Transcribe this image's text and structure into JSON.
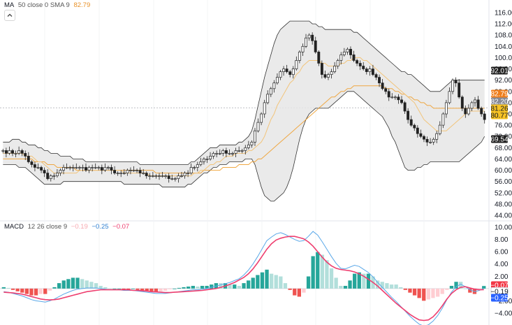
{
  "legend_ma": {
    "indicator": "MA",
    "params": "50 close 0 SMA 9",
    "value": "82.79"
  },
  "legend_macd": {
    "indicator": "MACD",
    "params": "12 26 close 9",
    "v1": "−0.19",
    "v2": "−0.25",
    "v3": "−0.07"
  },
  "price_badges": [
    "92.01",
    "82.79",
    "82.20",
    "81.26",
    "80.77",
    "69.54"
  ],
  "macd_badges": [
    "−0.07",
    "−0.19",
    "−0.25"
  ],
  "colors": {
    "up": "#26a69a",
    "down": "#ef5350",
    "band_fill": "#e6e6e6",
    "ma_orange": "#f0a030",
    "macd_line": "#5aa8e8",
    "signal_line": "#ee3e6f",
    "badge_dark": "#1f1f1f",
    "badge_orange": "#ef7d1a",
    "badge_gray": "#868993",
    "badge_yellow": "#f7c325",
    "badge_red": "#f23645",
    "badge_blue": "#2962ff"
  },
  "chart_data": [
    {
      "type": "candlestick",
      "overlays": [
        "bollinger",
        "moving-average"
      ],
      "y_ticks": [
        "116.00",
        "112.00",
        "108.00",
        "104.00",
        "100.00",
        "96.00",
        "92.00",
        "88.00",
        "84.00",
        "80.00",
        "76.00",
        "72.00",
        "68.00",
        "64.00",
        "60.00",
        "56.00",
        "52.00",
        "48.00",
        "44.00"
      ],
      "ylim": [
        44,
        116
      ],
      "close": [
        67,
        66,
        67,
        66,
        66,
        67,
        66,
        65,
        63,
        62,
        61,
        61,
        60,
        59,
        57,
        58,
        58,
        59,
        60,
        61,
        61,
        61,
        61,
        61,
        61,
        61,
        60,
        61,
        61,
        61,
        61,
        60,
        61,
        61,
        60,
        59,
        59,
        59,
        59,
        60,
        60,
        60,
        60,
        59,
        59,
        58,
        58,
        58,
        58,
        58,
        58,
        58,
        57,
        57,
        57,
        58,
        58,
        59,
        59,
        61,
        61,
        62,
        63,
        64,
        64,
        65,
        66,
        66,
        66,
        67,
        66,
        66,
        66,
        67,
        67,
        67,
        68,
        69,
        70,
        74,
        77,
        80,
        84,
        87,
        89,
        91,
        93,
        95,
        96,
        95,
        94,
        96,
        99,
        102,
        104,
        107,
        108,
        106,
        102,
        98,
        94,
        93,
        94,
        95,
        97,
        99,
        101,
        102,
        103,
        101,
        99,
        98,
        97,
        96,
        95,
        96,
        94,
        93,
        91,
        89,
        88,
        86,
        86,
        86,
        85,
        84,
        81,
        78,
        76,
        75,
        73,
        72,
        71,
        70,
        70,
        71,
        73,
        76,
        80,
        84,
        88,
        92,
        91,
        86,
        82,
        80,
        82,
        84,
        85,
        82,
        80,
        78
      ],
      "upper_band": [
        70,
        70,
        70,
        71,
        71,
        71,
        70,
        70,
        69,
        69,
        69,
        68,
        68,
        67,
        67,
        66,
        66,
        66,
        65,
        65,
        65,
        65,
        64,
        64,
        64,
        64,
        63,
        63,
        63,
        63,
        63,
        63,
        63,
        63,
        63,
        63,
        63,
        63,
        63,
        63,
        63,
        63,
        63,
        62,
        62,
        62,
        62,
        62,
        62,
        62,
        62,
        62,
        62,
        62,
        62,
        62,
        62,
        62,
        62,
        63,
        63,
        64,
        65,
        66,
        67,
        68,
        68,
        68,
        69,
        69,
        69,
        69,
        69,
        69,
        70,
        70,
        71,
        72,
        74,
        78,
        83,
        88,
        93,
        97,
        101,
        105,
        108,
        110,
        111,
        112,
        113,
        113,
        113,
        113,
        113,
        113,
        113,
        112,
        112,
        111,
        111,
        110,
        110,
        110,
        110,
        110,
        110,
        110,
        110,
        110,
        109,
        109,
        108,
        107,
        106,
        105,
        104,
        103,
        102,
        101,
        100,
        99,
        98,
        97,
        96,
        95,
        95,
        94,
        94,
        93,
        92,
        91,
        90,
        89,
        88,
        88,
        88,
        88,
        89,
        90,
        91,
        92,
        92,
        92,
        92,
        92,
        92,
        92,
        92,
        92,
        92,
        92
      ],
      "lower_band": [
        62,
        62,
        62,
        62,
        62,
        61,
        61,
        61,
        60,
        59,
        58,
        57,
        56,
        55,
        55,
        55,
        55,
        55,
        55,
        56,
        56,
        56,
        56,
        56,
        56,
        56,
        56,
        56,
        56,
        56,
        56,
        56,
        56,
        56,
        56,
        56,
        56,
        56,
        55,
        55,
        55,
        55,
        55,
        55,
        55,
        55,
        55,
        55,
        55,
        55,
        54,
        54,
        54,
        54,
        54,
        54,
        54,
        54,
        55,
        55,
        56,
        57,
        58,
        59,
        59,
        60,
        61,
        61,
        62,
        62,
        62,
        63,
        63,
        63,
        63,
        63,
        64,
        64,
        64,
        62,
        58,
        54,
        51,
        50,
        49,
        49,
        50,
        51,
        52,
        54,
        57,
        61,
        66,
        71,
        75,
        78,
        80,
        81,
        82,
        82,
        82,
        82,
        82,
        83,
        84,
        85,
        86,
        87,
        88,
        88,
        88,
        87,
        86,
        85,
        84,
        83,
        82,
        81,
        80,
        79,
        77,
        75,
        72,
        70,
        67,
        64,
        61,
        60,
        60,
        60,
        61,
        61,
        62,
        62,
        63,
        63,
        63,
        63,
        63,
        63,
        63,
        63,
        63,
        63,
        64,
        65,
        66,
        67,
        68,
        69,
        70,
        72
      ],
      "ma_fast": [
        66,
        66,
        66,
        66,
        66,
        66,
        66,
        65,
        65,
        65,
        64,
        63,
        63,
        62,
        61,
        60,
        59,
        59,
        59,
        59,
        59,
        59,
        59,
        59,
        60,
        60,
        60,
        60,
        60,
        60,
        60,
        60,
        60,
        60,
        60,
        60,
        60,
        60,
        59,
        59,
        59,
        59,
        59,
        59,
        59,
        59,
        58,
        58,
        58,
        58,
        58,
        58,
        58,
        58,
        58,
        58,
        58,
        58,
        58,
        58,
        59,
        59,
        60,
        60,
        61,
        62,
        62,
        63,
        63,
        64,
        65,
        65,
        65,
        66,
        66,
        66,
        66,
        67,
        67,
        68,
        69,
        70,
        72,
        75,
        78,
        80,
        83,
        85,
        87,
        89,
        91,
        92,
        94,
        95,
        97,
        98,
        99,
        99,
        99,
        99,
        98,
        98,
        97,
        97,
        97,
        97,
        98,
        98,
        99,
        99,
        100,
        100,
        100,
        99,
        99,
        98,
        97,
        96,
        95,
        94,
        93,
        92,
        91,
        90,
        89,
        88,
        87,
        86,
        85,
        84,
        82,
        80,
        78,
        77,
        76,
        75,
        74,
        74,
        74,
        74,
        75,
        76,
        77,
        78,
        79,
        80,
        81,
        81,
        81,
        81,
        81,
        81
      ],
      "ma_slow": [
        64,
        64,
        64,
        64,
        64,
        64,
        64,
        64,
        64,
        64,
        63,
        63,
        63,
        63,
        62,
        62,
        62,
        61,
        61,
        61,
        61,
        61,
        61,
        60,
        60,
        60,
        60,
        60,
        60,
        60,
        60,
        60,
        60,
        60,
        60,
        60,
        60,
        60,
        60,
        60,
        60,
        60,
        60,
        60,
        60,
        60,
        60,
        60,
        59,
        59,
        59,
        59,
        59,
        59,
        59,
        59,
        59,
        59,
        59,
        59,
        59,
        59,
        59,
        60,
        60,
        60,
        60,
        60,
        60,
        61,
        61,
        61,
        61,
        61,
        62,
        62,
        62,
        62,
        63,
        63,
        64,
        64,
        65,
        66,
        67,
        68,
        69,
        70,
        71,
        72,
        73,
        74,
        75,
        76,
        77,
        78,
        79,
        80,
        81,
        82,
        83,
        84,
        85,
        86,
        86,
        87,
        88,
        88,
        89,
        89,
        90,
        90,
        90,
        90,
        90,
        90,
        90,
        90,
        90,
        90,
        89,
        89,
        89,
        88,
        88,
        87,
        87,
        86,
        86,
        85,
        85,
        84,
        84,
        83,
        83,
        82,
        82,
        82,
        82,
        82,
        82,
        82,
        82,
        82,
        82,
        82,
        82,
        82,
        82,
        82,
        82,
        82
      ]
    },
    {
      "type": "macd",
      "y_ticks": [
        "10.00",
        "8.00",
        "6.00",
        "4.00",
        "2.00",
        "-2.00",
        "-4.00"
      ],
      "ylim": [
        -6,
        11
      ],
      "macd": [
        -0.5,
        -0.6,
        -0.8,
        -1,
        -1.2,
        -1.5,
        -1.8,
        -2,
        -2.1,
        -2.2,
        -2,
        -1.7,
        -1.3,
        -0.9,
        -0.6,
        -0.3,
        -0.1,
        0,
        0.1,
        0.1,
        0.1,
        0,
        -0.1,
        -0.2,
        -0.2,
        -0.2,
        -0.3,
        -0.3,
        -0.3,
        -0.4,
        -0.5,
        -0.6,
        -0.7,
        -0.8,
        -0.8,
        -0.8,
        -0.7,
        -0.6,
        -0.5,
        -0.4,
        -0.3,
        -0.2,
        -0.2,
        -0.1,
        0,
        0.2,
        0.4,
        0.6,
        0.8,
        1,
        1.3,
        1.6,
        2.2,
        3,
        4,
        5.2,
        6.5,
        7.8,
        8.4,
        8.9,
        9.1,
        8.8,
        8.4,
        8,
        7.7,
        7.8,
        8.5,
        9.3,
        8.7,
        7.6,
        6.4,
        5.2,
        4.1,
        3.3,
        3.2,
        3.5,
        3.8,
        3.6,
        3.1,
        2.6,
        1.9,
        1,
        0.2,
        -0.6,
        -1.4,
        -2.1,
        -2.9,
        -3.7,
        -4.5,
        -5.2,
        -5.8,
        -6.1,
        -5.9,
        -5.3,
        -4.4,
        -3.2,
        -1.8,
        -0.6,
        0.3,
        0.7,
        0.3,
        -0.2,
        -0.5,
        -0.3,
        0
      ],
      "signal": [
        -0.6,
        -0.65,
        -0.7,
        -0.8,
        -0.9,
        -1.1,
        -1.3,
        -1.5,
        -1.7,
        -1.8,
        -1.85,
        -1.8,
        -1.7,
        -1.5,
        -1.3,
        -1.1,
        -0.9,
        -0.7,
        -0.5,
        -0.4,
        -0.3,
        -0.2,
        -0.2,
        -0.2,
        -0.2,
        -0.2,
        -0.2,
        -0.2,
        -0.3,
        -0.3,
        -0.35,
        -0.4,
        -0.5,
        -0.55,
        -0.6,
        -0.65,
        -0.65,
        -0.6,
        -0.55,
        -0.5,
        -0.45,
        -0.4,
        -0.35,
        -0.3,
        -0.2,
        -0.1,
        0,
        0.2,
        0.4,
        0.7,
        1,
        1.4,
        1.8,
        2.4,
        3.2,
        4.2,
        5.3,
        6.4,
        7.3,
        7.9,
        8.2,
        8.4,
        8.5,
        8.5,
        8.3,
        8.1,
        7.6,
        6.9,
        6,
        5.1,
        4.3,
        3.7,
        3.3,
        3.1,
        3,
        2.9,
        2.7,
        2.4,
        2,
        1.5,
        1,
        0.4,
        -0.3,
        -1,
        -1.7,
        -2.4,
        -3,
        -3.6,
        -4.2,
        -4.7,
        -5.1,
        -5.2,
        -5.1,
        -4.6,
        -3.8,
        -2.8,
        -1.7,
        -0.8,
        -0.2,
        0.2,
        0.3,
        0.1,
        -0.1,
        -0.2,
        -0.19
      ]
    }
  ]
}
